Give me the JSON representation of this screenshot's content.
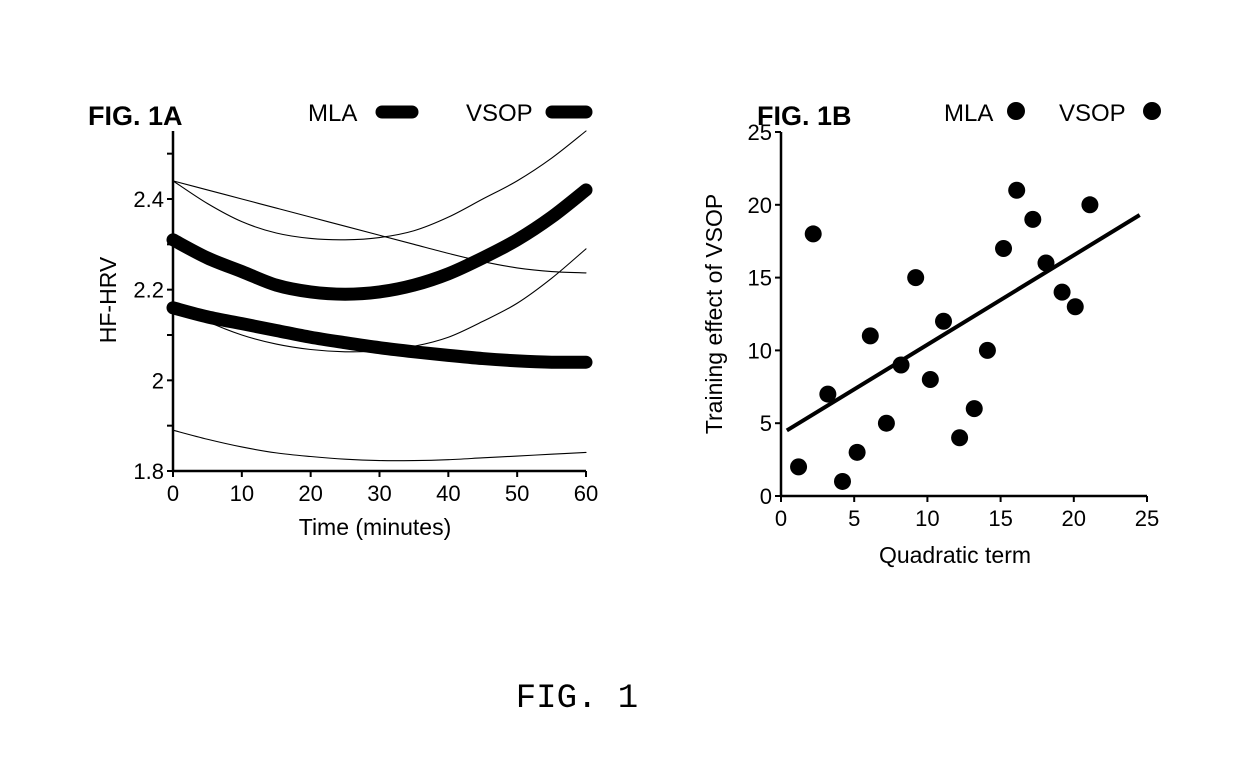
{
  "caption": "FIG. 1",
  "chart_data": [
    {
      "id": "fig1a",
      "type": "line",
      "title": "FIG. 1A",
      "xlabel": "Time (minutes)",
      "ylabel": "HF-HRV",
      "xlim": [
        0,
        60
      ],
      "ylim": [
        1.8,
        2.55
      ],
      "x_ticks": [
        0,
        10,
        20,
        30,
        40,
        50,
        60
      ],
      "x_tick_labels": [
        "0",
        "10",
        "20",
        "30",
        "40",
        "50",
        "60"
      ],
      "y_ticks": [
        1.8,
        1.9,
        2.0,
        2.1,
        2.2,
        2.3,
        2.4,
        2.5
      ],
      "y_tick_labels": [
        "1.8",
        "",
        "2",
        "",
        "2.2",
        "",
        "2.4",
        ""
      ],
      "grid": false,
      "legend": {
        "placement": "top",
        "entries": [
          {
            "label": "MLA",
            "marker": "thick-line"
          },
          {
            "label": "VSOP",
            "marker": "thick-line"
          }
        ]
      },
      "x": [
        0,
        5,
        10,
        15,
        20,
        25,
        30,
        35,
        40,
        45,
        50,
        55,
        60
      ],
      "series": [
        {
          "name": "estimate-upper",
          "style": "thick",
          "values": [
            2.31,
            2.27,
            2.24,
            2.21,
            2.195,
            2.19,
            2.195,
            2.21,
            2.235,
            2.27,
            2.31,
            2.36,
            2.42
          ]
        },
        {
          "name": "estimate-lower",
          "style": "thick",
          "values": [
            2.16,
            2.14,
            2.125,
            2.11,
            2.095,
            2.083,
            2.072,
            2.063,
            2.055,
            2.048,
            2.043,
            2.04,
            2.04
          ]
        },
        {
          "name": "ci-upper-1",
          "style": "thin",
          "values": [
            2.44,
            2.39,
            2.35,
            2.325,
            2.313,
            2.31,
            2.315,
            2.33,
            2.36,
            2.4,
            2.44,
            2.49,
            2.55
          ]
        },
        {
          "name": "ci-upper-2",
          "style": "thin",
          "values": [
            2.44,
            2.42,
            2.4,
            2.38,
            2.36,
            2.34,
            2.32,
            2.3,
            2.28,
            2.262,
            2.248,
            2.24,
            2.237
          ]
        },
        {
          "name": "ci-lower-1",
          "style": "thin",
          "values": [
            2.17,
            2.13,
            2.1,
            2.08,
            2.068,
            2.063,
            2.065,
            2.075,
            2.095,
            2.13,
            2.17,
            2.225,
            2.29
          ]
        },
        {
          "name": "ci-lower-2",
          "style": "thin",
          "values": [
            1.89,
            1.87,
            1.853,
            1.84,
            1.832,
            1.826,
            1.823,
            1.823,
            1.825,
            1.829,
            1.833,
            1.837,
            1.841
          ]
        }
      ]
    },
    {
      "id": "fig1b",
      "type": "scatter",
      "title": "FIG. 1B",
      "xlabel": "Quadratic term",
      "ylabel": "Training effect of VSOP",
      "xlim": [
        0,
        25
      ],
      "ylim": [
        0,
        25
      ],
      "x_ticks": [
        0,
        5,
        10,
        15,
        20,
        25
      ],
      "x_tick_labels": [
        "0",
        "5",
        "10",
        "15",
        "20",
        "25"
      ],
      "y_ticks": [
        0,
        5,
        10,
        15,
        20,
        25
      ],
      "y_tick_labels": [
        "0",
        "5",
        "10",
        "15",
        "20",
        "25"
      ],
      "grid": false,
      "legend": {
        "placement": "top",
        "entries": [
          {
            "label": "MLA",
            "marker": "dot"
          },
          {
            "label": "VSOP",
            "marker": "dot"
          }
        ]
      },
      "points": [
        {
          "x": 1.2,
          "y": 2
        },
        {
          "x": 2.2,
          "y": 18
        },
        {
          "x": 3.2,
          "y": 7
        },
        {
          "x": 4.2,
          "y": 1
        },
        {
          "x": 5.2,
          "y": 3
        },
        {
          "x": 6.1,
          "y": 11
        },
        {
          "x": 7.2,
          "y": 5
        },
        {
          "x": 8.2,
          "y": 9
        },
        {
          "x": 9.2,
          "y": 15
        },
        {
          "x": 10.2,
          "y": 8
        },
        {
          "x": 11.1,
          "y": 12
        },
        {
          "x": 12.2,
          "y": 4
        },
        {
          "x": 13.2,
          "y": 6
        },
        {
          "x": 14.1,
          "y": 10
        },
        {
          "x": 15.2,
          "y": 17
        },
        {
          "x": 16.1,
          "y": 21
        },
        {
          "x": 17.2,
          "y": 19
        },
        {
          "x": 18.1,
          "y": 16
        },
        {
          "x": 19.2,
          "y": 14
        },
        {
          "x": 20.1,
          "y": 13
        },
        {
          "x": 21.1,
          "y": 20
        }
      ],
      "fit_line": {
        "x": [
          0.4,
          24.5
        ],
        "y": [
          4.5,
          19.3
        ]
      }
    }
  ]
}
